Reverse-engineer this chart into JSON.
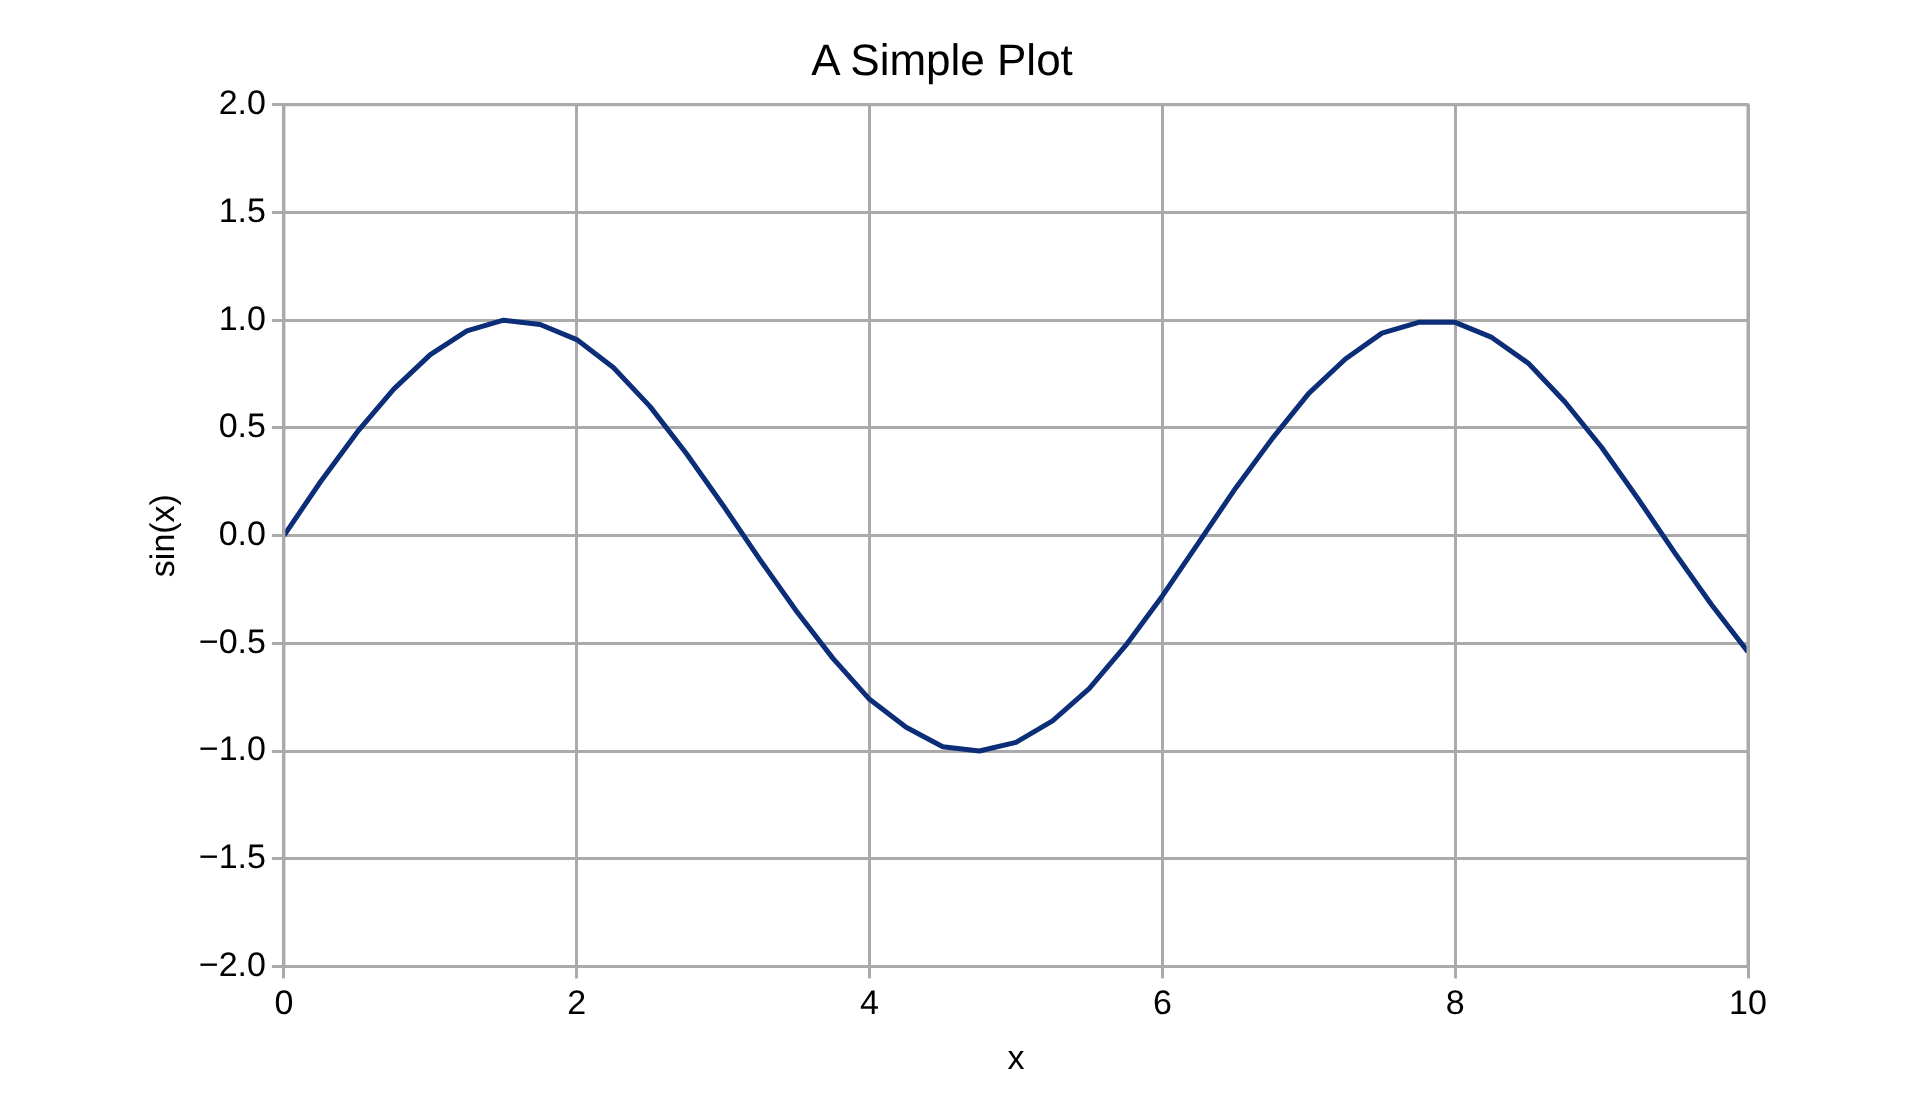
{
  "chart_data": {
    "type": "line",
    "title": "A Simple Plot",
    "xlabel": "x",
    "ylabel": "sin(x)",
    "x": [
      0,
      0.25,
      0.5,
      0.75,
      1,
      1.25,
      1.5,
      1.75,
      2,
      2.25,
      2.5,
      2.75,
      3,
      3.25,
      3.5,
      3.75,
      4,
      4.25,
      4.5,
      4.75,
      5,
      5.25,
      5.5,
      5.75,
      6,
      6.25,
      6.5,
      6.75,
      7,
      7.25,
      7.5,
      7.75,
      8,
      8.25,
      8.5,
      8.75,
      9,
      9.25,
      9.5,
      9.75,
      10
    ],
    "series": [
      {
        "color": "#0c2d78",
        "values": [
          0,
          0.25,
          0.48,
          0.68,
          0.84,
          0.95,
          1.0,
          0.98,
          0.91,
          0.78,
          0.6,
          0.38,
          0.14,
          -0.11,
          -0.35,
          -0.57,
          -0.76,
          -0.89,
          -0.98,
          -1.0,
          -0.96,
          -0.86,
          -0.71,
          -0.51,
          -0.28,
          -0.03,
          0.22,
          0.45,
          0.66,
          0.82,
          0.94,
          0.99,
          0.99,
          0.92,
          0.8,
          0.62,
          0.41,
          0.17,
          -0.08,
          -0.32,
          -0.54
        ]
      }
    ],
    "xlim": [
      0,
      10
    ],
    "xticks": [
      0,
      2,
      4,
      6,
      8,
      10
    ],
    "ylim": [
      -2,
      2
    ],
    "yticks": [
      {
        "value": -2,
        "label": "−2.0"
      },
      {
        "value": -1.5,
        "label": "−1.5"
      },
      {
        "value": -1,
        "label": "−1.0"
      },
      {
        "value": -0.5,
        "label": "−0.5"
      },
      {
        "value": 0,
        "label": "0.0"
      },
      {
        "value": 0.5,
        "label": "0.5"
      },
      {
        "value": 1,
        "label": "1.0"
      },
      {
        "value": 1.5,
        "label": "1.5"
      },
      {
        "value": 2,
        "label": "2.0"
      }
    ],
    "grid": true,
    "legend": false,
    "marker": "none",
    "line_style": "solid"
  }
}
